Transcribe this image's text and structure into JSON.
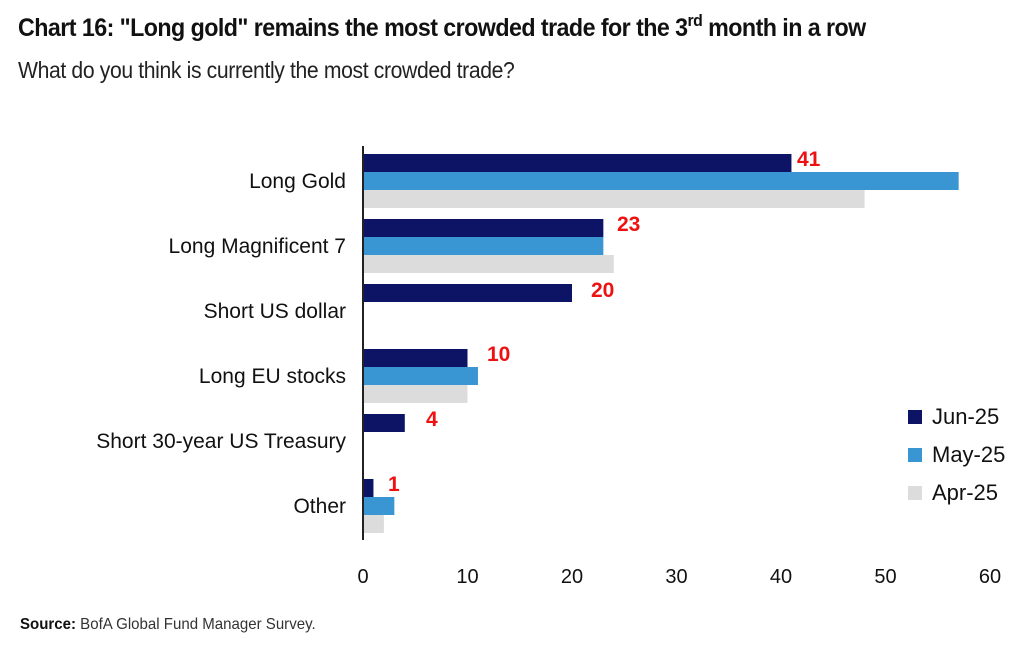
{
  "header": {
    "title_main": "Chart 16: \"Long gold\" remains the most crowded trade for the 3",
    "title_sup": "rd",
    "title_end": " month in a row",
    "subtitle": "What do you think is currently the most crowded trade?"
  },
  "footer": {
    "source_label": "Source:",
    "source_text": " BofA Global Fund Manager Survey."
  },
  "colors": {
    "jun": "#0d1466",
    "may": "#3a95d3",
    "apr": "#dcdcdc",
    "data_label": "#ee1111",
    "axis": "#222222"
  },
  "chart_data": {
    "type": "bar",
    "orientation": "horizontal",
    "title": "Chart 16: \"Long gold\" remains the most crowded trade for the 3rd month in a row",
    "subtitle": "What do you think is currently the most crowded trade?",
    "xlabel": "",
    "ylabel": "",
    "xlim": [
      0,
      60
    ],
    "xticks": [
      0,
      10,
      20,
      30,
      40,
      50,
      60
    ],
    "grid": false,
    "legend_position": "right",
    "categories": [
      "Long Gold",
      "Long Magnificent 7",
      "Short US dollar",
      "Long EU stocks",
      "Short 30-year US Treasury",
      "Other"
    ],
    "series": [
      {
        "name": "Jun-25",
        "key": "jun",
        "values": [
          41,
          23,
          20,
          10,
          4,
          1
        ]
      },
      {
        "name": "May-25",
        "key": "may",
        "values": [
          57,
          23,
          null,
          11,
          null,
          3
        ]
      },
      {
        "name": "Apr-25",
        "key": "apr",
        "values": [
          48,
          24,
          null,
          10,
          null,
          2
        ]
      }
    ],
    "data_labels": [
      "41",
      "23",
      "20",
      "10",
      "4",
      "1"
    ],
    "data_labels_series": "Jun-25"
  }
}
